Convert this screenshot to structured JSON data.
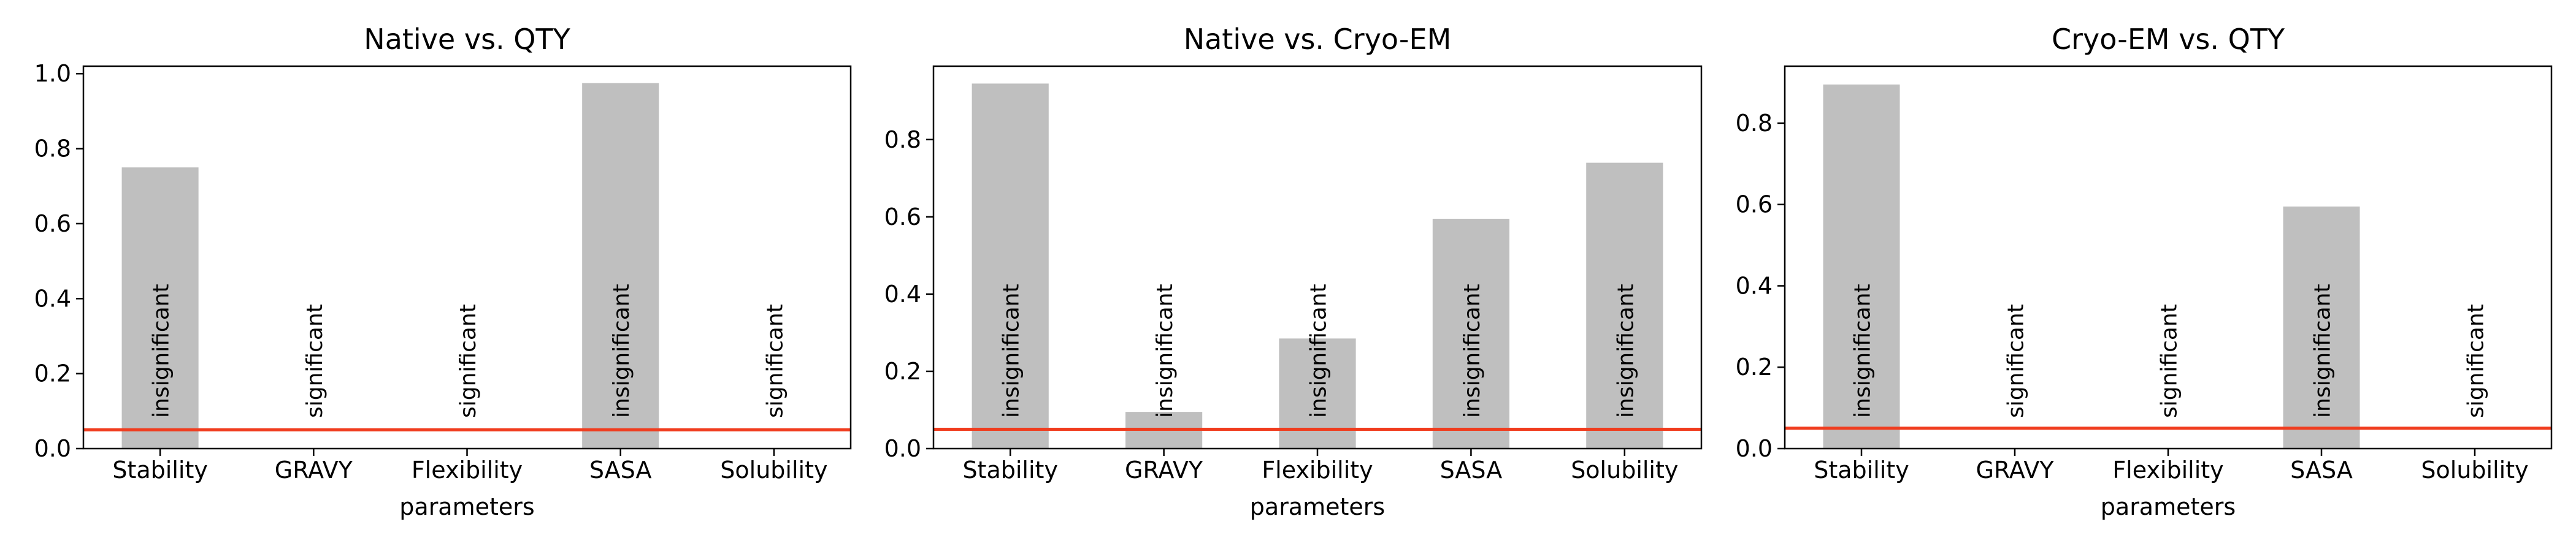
{
  "chart_data": [
    {
      "type": "bar",
      "title": "Native vs. QTY",
      "xlabel": "parameters",
      "ylabel": "",
      "categories": [
        "Stability",
        "GRAVY",
        "Flexibility",
        "SASA",
        "Solubility"
      ],
      "values": [
        0.75,
        0.0,
        0.0,
        0.975,
        0.0
      ],
      "bar_labels": [
        "insignificant",
        "significant",
        "significant",
        "insignificant",
        "significant"
      ],
      "ylim": [
        0,
        1.02
      ],
      "yticks": [
        0.0,
        0.2,
        0.4,
        0.6,
        0.8,
        1.0
      ],
      "ytick_labels": [
        "0.0",
        "0.2",
        "0.4",
        "0.6",
        "0.8",
        "1.0"
      ],
      "threshold": 0.05,
      "grid": false
    },
    {
      "type": "bar",
      "title": "Native vs. Cryo-EM",
      "xlabel": "parameters",
      "ylabel": "",
      "categories": [
        "Stability",
        "GRAVY",
        "Flexibility",
        "SASA",
        "Solubility"
      ],
      "values": [
        0.945,
        0.095,
        0.285,
        0.595,
        0.74
      ],
      "bar_labels": [
        "insignificant",
        "insignificant",
        "insignificant",
        "insignificant",
        "insignificant"
      ],
      "ylim": [
        0,
        0.99
      ],
      "yticks": [
        0.0,
        0.2,
        0.4,
        0.6,
        0.8
      ],
      "ytick_labels": [
        "0.0",
        "0.2",
        "0.4",
        "0.6",
        "0.8"
      ],
      "threshold": 0.05,
      "grid": false
    },
    {
      "type": "bar",
      "title": "Cryo-EM vs. QTY",
      "xlabel": "parameters",
      "ylabel": "",
      "categories": [
        "Stability",
        "GRAVY",
        "Flexibility",
        "SASA",
        "Solubility"
      ],
      "values": [
        0.895,
        0.0,
        0.0,
        0.595,
        0.0
      ],
      "bar_labels": [
        "insignificant",
        "significant",
        "significant",
        "insignificant",
        "significant"
      ],
      "ylim": [
        0,
        0.94
      ],
      "yticks": [
        0.0,
        0.2,
        0.4,
        0.6,
        0.8
      ],
      "ytick_labels": [
        "0.0",
        "0.2",
        "0.4",
        "0.6",
        "0.8"
      ],
      "threshold": 0.05,
      "grid": false
    }
  ],
  "colors": {
    "bar": "#bfbfbf",
    "threshold_line": "#f03c1e",
    "axes": "#000000"
  }
}
